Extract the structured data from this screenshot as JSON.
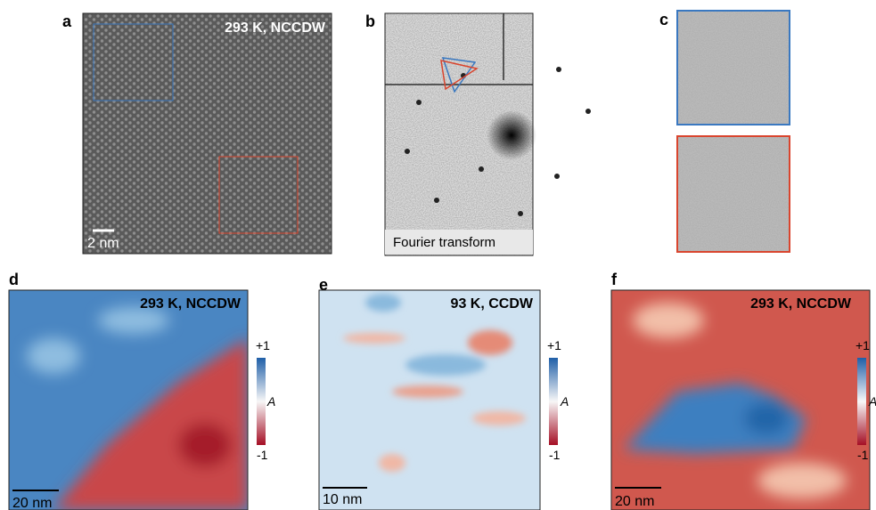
{
  "panels": [
    {
      "label": "a",
      "annotation": "293 K, NCCDW",
      "scale_bar": "2 nm"
    },
    {
      "label": "b",
      "annotation": "Fourier transform"
    },
    {
      "label": "c"
    },
    {
      "label": "d",
      "annotation": "293 K, NCCDW",
      "scale_bar": "20 nm",
      "colorbar": {
        "max": "+1",
        "name": "A",
        "min": "-1"
      }
    },
    {
      "label": "e",
      "annotation": "93 K, CCDW",
      "scale_bar": "10 nm",
      "colorbar": {
        "max": "+1",
        "name": "A",
        "min": "-1"
      }
    },
    {
      "label": "f",
      "annotation": "293 K, NCCDW",
      "scale_bar": "20 nm",
      "colorbar": {
        "max": "+1",
        "name": "A",
        "min": "-1"
      }
    }
  ]
}
